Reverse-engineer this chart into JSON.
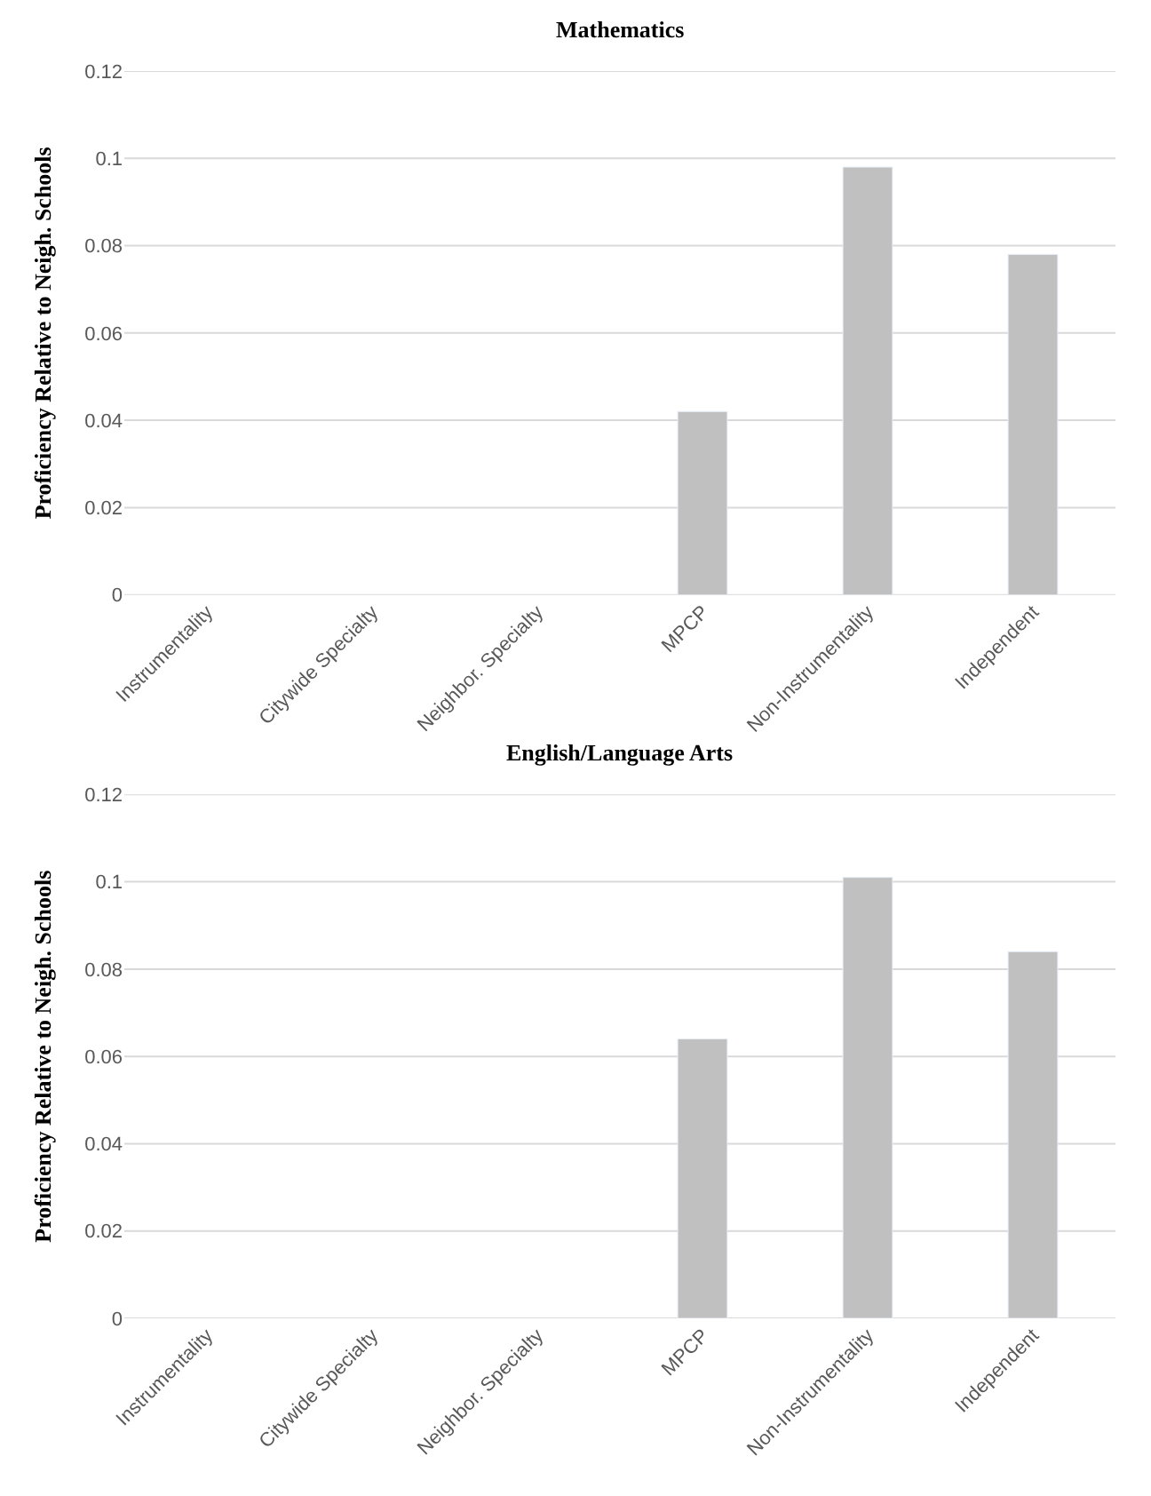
{
  "chart_data": [
    {
      "type": "bar",
      "title": "Mathematics",
      "ylabel": "Proficiency Relative to Neigh. Schools",
      "categories": [
        "Instrumentality",
        "Citywide Specialty",
        "Neighbor. Specialty",
        "MPCP",
        "Non-Instrumentality",
        "Independent"
      ],
      "values": [
        null,
        null,
        null,
        0.042,
        0.098,
        0.078
      ],
      "color": "#c0c0c0",
      "ylim": [
        0,
        0.12
      ],
      "yticks": [
        0,
        0.02,
        0.04,
        0.06,
        0.08,
        0.1,
        0.12
      ],
      "grid": "y"
    },
    {
      "type": "bar",
      "title": "English/Language Arts",
      "ylabel": "Proficiency Relative to Neigh. Schools",
      "categories": [
        "Instrumentality",
        "Citywide Specialty",
        "Neighbor. Specialty",
        "MPCP",
        "Non-Instrumentality",
        "Independent"
      ],
      "values": [
        null,
        null,
        null,
        0.064,
        0.101,
        0.084
      ],
      "color": "#c0c0c0",
      "ylim": [
        0,
        0.12
      ],
      "yticks": [
        0,
        0.02,
        0.04,
        0.06,
        0.08,
        0.1,
        0.12
      ],
      "grid": "y"
    }
  ]
}
